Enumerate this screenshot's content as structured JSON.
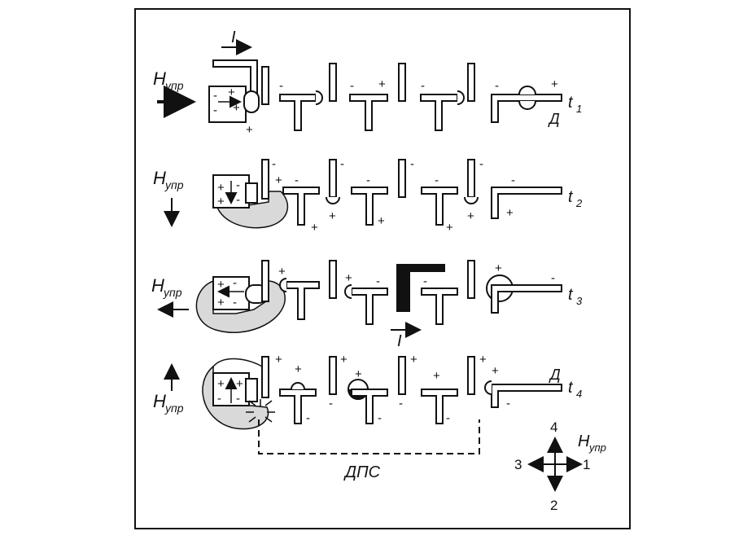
{
  "rows": [
    {
      "h_label": "H",
      "h_sub": "упр",
      "t_label": "t",
      "t_sub": "1",
      "current_label": "I",
      "d_label": "Д"
    },
    {
      "h_label": "H",
      "h_sub": "упр",
      "t_label": "t",
      "t_sub": "2"
    },
    {
      "h_label": "H",
      "h_sub": "упр",
      "t_label": "t",
      "t_sub": "3",
      "current_label": "I"
    },
    {
      "h_label": "H",
      "h_sub": "упр",
      "t_label": "t",
      "t_sub": "4",
      "d_label": "Д"
    }
  ],
  "dps_label": "ДПС",
  "compass": {
    "h_label": "H",
    "h_sub": "упр",
    "up": "4",
    "left": "3",
    "right": "1",
    "down": "2"
  },
  "colors": {
    "ink": "#111111",
    "shade": "#d9d9d9",
    "bg": "#ffffff"
  }
}
